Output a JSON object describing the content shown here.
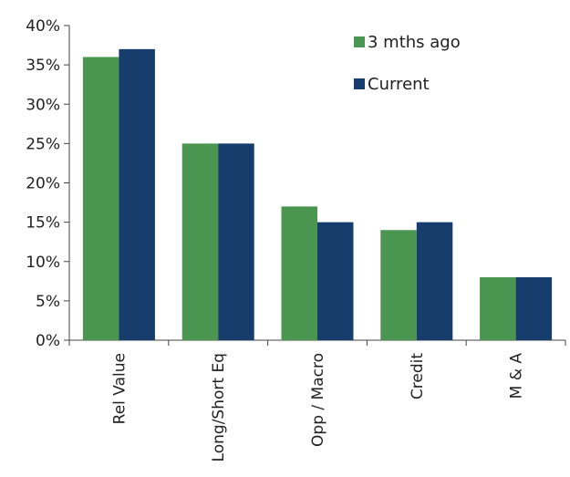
{
  "chart_data": {
    "type": "bar",
    "title": "",
    "xlabel": "",
    "ylabel": "",
    "categories": [
      "Rel Value",
      "Long/Short Eq",
      "Opp / Macro",
      "Credit",
      "M & A"
    ],
    "series": [
      {
        "name": "3 mths ago",
        "color": "#4a9651",
        "values": [
          36,
          25,
          17,
          14,
          8
        ]
      },
      {
        "name": "Current",
        "color": "#163d6b",
        "values": [
          37,
          25,
          15,
          15,
          8
        ]
      }
    ],
    "ylim": [
      0,
      40
    ],
    "yticks": [
      0,
      5,
      10,
      15,
      20,
      25,
      30,
      35,
      40
    ],
    "ytick_labels": [
      "0%",
      "5%",
      "10%",
      "15%",
      "20%",
      "25%",
      "30%",
      "35%",
      "40%"
    ],
    "grid": false,
    "legend_position": "top-right"
  }
}
